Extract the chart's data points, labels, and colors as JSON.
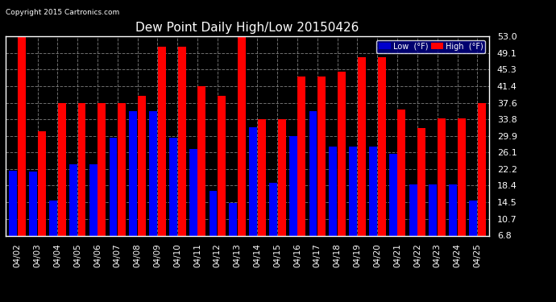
{
  "title": "Dew Point Daily High/Low 20150426",
  "copyright": "Copyright 2015 Cartronics.com",
  "dates": [
    "04/02",
    "04/03",
    "04/04",
    "04/05",
    "04/06",
    "04/07",
    "04/08",
    "04/09",
    "04/10",
    "04/11",
    "04/12",
    "04/13",
    "04/14",
    "04/15",
    "04/16",
    "04/17",
    "04/18",
    "04/19",
    "04/20",
    "04/21",
    "04/22",
    "04/23",
    "04/24",
    "04/25"
  ],
  "high": [
    53.0,
    30.9,
    37.6,
    37.6,
    37.6,
    37.6,
    39.2,
    50.5,
    50.5,
    41.4,
    39.2,
    53.0,
    33.8,
    33.8,
    43.7,
    43.7,
    44.7,
    48.2,
    48.2,
    36.0,
    31.8,
    34.0,
    34.0,
    37.6
  ],
  "low": [
    21.9,
    21.6,
    14.9,
    23.4,
    23.4,
    29.5,
    35.6,
    35.6,
    29.5,
    26.8,
    17.1,
    14.3,
    32.0,
    19.0,
    29.9,
    35.6,
    27.5,
    27.5,
    27.5,
    25.7,
    18.7,
    18.7,
    18.7,
    14.9
  ],
  "ylim_min": 6.8,
  "ylim_max": 53.0,
  "yticks": [
    6.8,
    10.7,
    14.5,
    18.4,
    22.2,
    26.1,
    29.9,
    33.8,
    37.6,
    41.4,
    45.3,
    49.1,
    53.0
  ],
  "bar_color_low": "#0000ff",
  "bar_color_high": "#ff0000",
  "bg_color": "#000000",
  "plot_bg_color": "#000000",
  "grid_color": "#888888",
  "text_color": "#ffffff",
  "legend_low_bg": "#0000cd",
  "legend_high_bg": "#ff0000",
  "legend_frame_bg": "#00008b"
}
